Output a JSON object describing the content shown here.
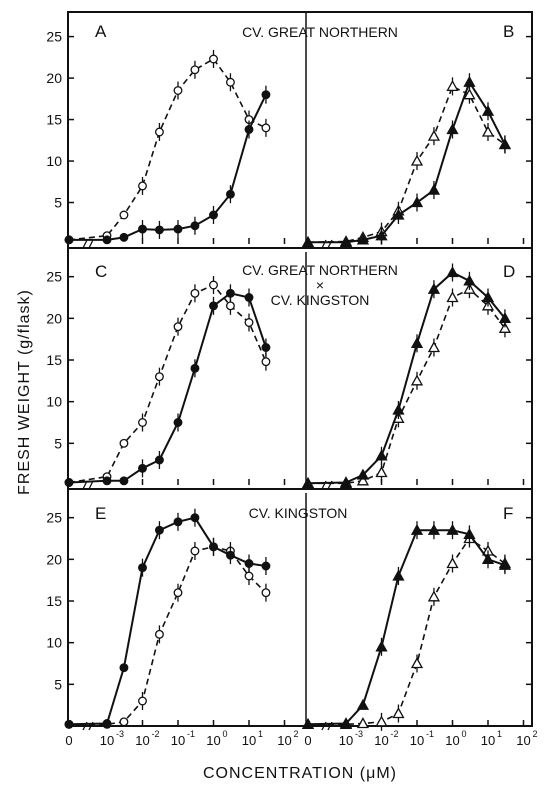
{
  "figure": {
    "ylabel": "FRESH WEIGHT  (g/flask)",
    "xlabel": "CONCENTRATION  (μM)",
    "x_ticks": [
      "0",
      "10",
      "10",
      "10",
      "10",
      "10",
      "10"
    ],
    "x_tick_exponents": [
      "",
      "-3",
      "-2",
      "-1",
      "0",
      "1",
      "2"
    ],
    "y_ticks": [
      "5",
      "10",
      "15",
      "20",
      "25"
    ],
    "cross_mark": "×"
  },
  "chart_data": [
    {
      "type": "line",
      "panel": "A",
      "row": 0,
      "col": 0,
      "title": "CV. GREAT NORTHERN",
      "x_scale": "log10 (with 0 at origin)",
      "ylim": [
        0,
        27
      ],
      "grid": false,
      "series": [
        {
          "style": "open-circle-dashed",
          "x": [
            0,
            0.001,
            0.003,
            0.01,
            0.03,
            0.1,
            0.3,
            1,
            3,
            10,
            30
          ],
          "y": [
            0.5,
            1,
            3.5,
            7,
            13.5,
            18.5,
            21,
            22.3,
            19.5,
            15,
            14
          ]
        },
        {
          "style": "filled-circle-solid",
          "x": [
            0,
            0.001,
            0.003,
            0.01,
            0.03,
            0.1,
            0.3,
            1,
            3,
            10,
            30
          ],
          "y": [
            0.5,
            0.5,
            0.8,
            1.8,
            1.7,
            1.8,
            2.2,
            3.5,
            6,
            13.8,
            18
          ]
        }
      ]
    },
    {
      "type": "line",
      "panel": "B",
      "row": 0,
      "col": 1,
      "x_scale": "log10 (with 0 at origin)",
      "ylim": [
        0,
        27
      ],
      "grid": false,
      "series": [
        {
          "style": "open-triangle-dashed",
          "x": [
            0,
            0.001,
            0.003,
            0.01,
            0.03,
            0.1,
            0.3,
            1,
            3,
            10,
            30
          ],
          "y": [
            0.2,
            0.3,
            0.8,
            1.5,
            4,
            10,
            13,
            19,
            18,
            13.5,
            12
          ]
        },
        {
          "style": "filled-triangle-solid",
          "x": [
            0,
            0.001,
            0.003,
            0.01,
            0.03,
            0.1,
            0.3,
            1,
            3,
            10,
            30
          ],
          "y": [
            0.2,
            0.2,
            0.5,
            1,
            3.5,
            5,
            6.5,
            13.8,
            19.5,
            16,
            12
          ]
        }
      ]
    },
    {
      "type": "line",
      "panel": "C",
      "row": 1,
      "col": 0,
      "title": "CV. GREAT NORTHERN",
      "x_scale": "log10 (with 0 at origin)",
      "ylim": [
        0,
        27
      ],
      "grid": false,
      "series": [
        {
          "style": "open-circle-dashed",
          "x": [
            0,
            0.001,
            0.003,
            0.01,
            0.03,
            0.1,
            0.3,
            1,
            3,
            10,
            30
          ],
          "y": [
            0.3,
            1,
            5,
            7.5,
            13,
            19,
            23,
            24,
            21.5,
            19.5,
            14.8
          ]
        },
        {
          "style": "filled-circle-solid",
          "x": [
            0,
            0.001,
            0.003,
            0.01,
            0.03,
            0.1,
            0.3,
            1,
            3,
            10,
            30
          ],
          "y": [
            0.3,
            0.5,
            0.5,
            2,
            3,
            7.5,
            14,
            21.5,
            23,
            22.5,
            16.5
          ]
        }
      ]
    },
    {
      "type": "line",
      "panel": "D",
      "row": 1,
      "col": 1,
      "title": "CV. KINGSTON",
      "x_scale": "log10 (with 0 at origin)",
      "ylim": [
        0,
        27
      ],
      "grid": false,
      "series": [
        {
          "style": "open-triangle-dashed",
          "x": [
            0,
            0.001,
            0.003,
            0.01,
            0.03,
            0.1,
            0.3,
            1,
            3,
            10,
            30
          ],
          "y": [
            0.2,
            0.2,
            0.5,
            1.5,
            8,
            12.5,
            16.5,
            22.5,
            23.5,
            21.5,
            18.8
          ]
        },
        {
          "style": "filled-triangle-solid",
          "x": [
            0,
            0.001,
            0.003,
            0.01,
            0.03,
            0.1,
            0.3,
            1,
            3,
            10,
            30
          ],
          "y": [
            0.2,
            0.3,
            1.2,
            3.5,
            9,
            17,
            23.5,
            25.5,
            24.5,
            22.5,
            20
          ]
        }
      ]
    },
    {
      "type": "line",
      "panel": "E",
      "row": 2,
      "col": 0,
      "title": "CV. KINGSTON",
      "x_scale": "log10 (with 0 at origin)",
      "ylim": [
        0,
        27
      ],
      "grid": false,
      "series": [
        {
          "style": "open-circle-dashed",
          "x": [
            0,
            0.001,
            0.003,
            0.01,
            0.03,
            0.1,
            0.3,
            1,
            3,
            10,
            30
          ],
          "y": [
            0.2,
            0.2,
            0.5,
            3,
            11,
            16,
            21,
            21.5,
            21,
            18,
            16
          ]
        },
        {
          "style": "filled-circle-solid",
          "x": [
            0,
            0.001,
            0.003,
            0.01,
            0.03,
            0.1,
            0.3,
            1,
            3,
            10,
            30
          ],
          "y": [
            0.2,
            0.3,
            7,
            19,
            23.5,
            24.5,
            25,
            21.5,
            20.5,
            19.5,
            19.2
          ]
        }
      ]
    },
    {
      "type": "line",
      "panel": "F",
      "row": 2,
      "col": 1,
      "x_scale": "log10 (with 0 at origin)",
      "ylim": [
        0,
        27
      ],
      "grid": false,
      "series": [
        {
          "style": "open-triangle-dashed",
          "x": [
            0,
            0.001,
            0.003,
            0.01,
            0.03,
            0.1,
            0.3,
            1,
            3,
            10,
            30
          ],
          "y": [
            0.2,
            0.2,
            0.3,
            0.5,
            1.5,
            7.5,
            15.5,
            19.5,
            22.5,
            21,
            19.5
          ]
        },
        {
          "style": "filled-triangle-solid",
          "x": [
            0,
            0.001,
            0.003,
            0.01,
            0.03,
            0.1,
            0.3,
            1,
            3,
            10,
            30
          ],
          "y": [
            0.2,
            0.3,
            2.5,
            9.5,
            18,
            23.5,
            23.5,
            23.5,
            23,
            20,
            19.3
          ]
        }
      ]
    }
  ]
}
